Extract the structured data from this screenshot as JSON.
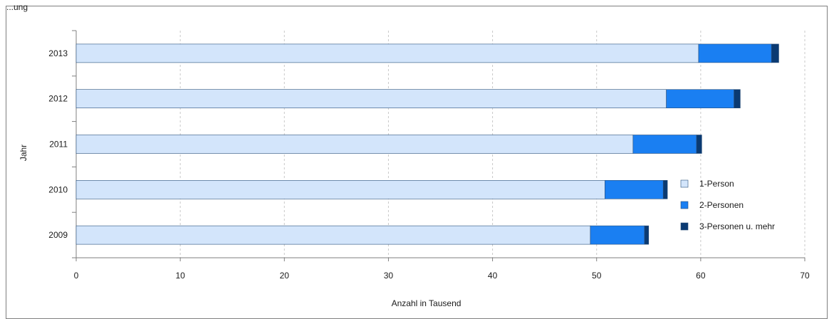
{
  "header_fragment": "...ung",
  "colors": {
    "person1": "#d3e5fb",
    "person2": "#1a7ff2",
    "person3": "#0a3a72",
    "bar_stroke": "#2a4f7a",
    "grid": "#c8c8c8",
    "axis": "#7f7f7f"
  },
  "chart_data": {
    "type": "bar",
    "orientation": "horizontal",
    "stacked": true,
    "categories": [
      "2013",
      "2012",
      "2011",
      "2010",
      "2009"
    ],
    "series": [
      {
        "name": "1-Person",
        "values": [
          59.8,
          56.7,
          53.5,
          50.8,
          49.4
        ]
      },
      {
        "name": "2-Personen",
        "values": [
          7.0,
          6.5,
          6.1,
          5.6,
          5.2
        ]
      },
      {
        "name": "3-Personen u. mehr",
        "values": [
          0.7,
          0.6,
          0.5,
          0.4,
          0.4
        ]
      }
    ],
    "xlabel": "Anzahl in Tausend",
    "ylabel": "Jahr",
    "xlim": [
      0,
      70
    ],
    "xticks": [
      "0",
      "10",
      "20",
      "30",
      "40",
      "50",
      "60",
      "70"
    ],
    "grid": "vertical-dashed",
    "legend_position": "right"
  }
}
